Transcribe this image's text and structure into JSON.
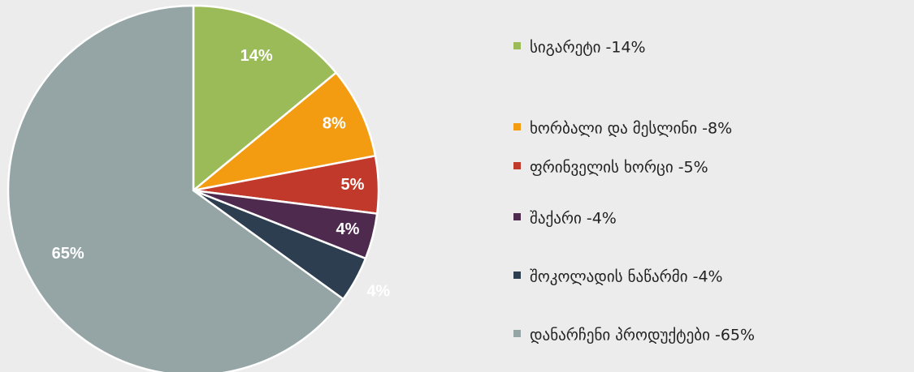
{
  "chart_data": {
    "type": "pie",
    "categories": [
      "სიგარეტი -14%",
      "ხორბალი და მესლინი -8%",
      "ფრინველის ხორცი -5%",
      "შაქარი -4%",
      "შოკოლადის ნაწარმი -4%",
      "დანარჩენი პროდუქტები -65%"
    ],
    "values": [
      14,
      8,
      5,
      4,
      4,
      65
    ],
    "value_labels": [
      "14%",
      "8%",
      "5%",
      "4%",
      "4%",
      "65%"
    ],
    "colors": [
      "#9bbb59",
      "#f39c12",
      "#c0392b",
      "#4e2a4f",
      "#2c3e50",
      "#95a5a6"
    ],
    "legend": "right"
  }
}
